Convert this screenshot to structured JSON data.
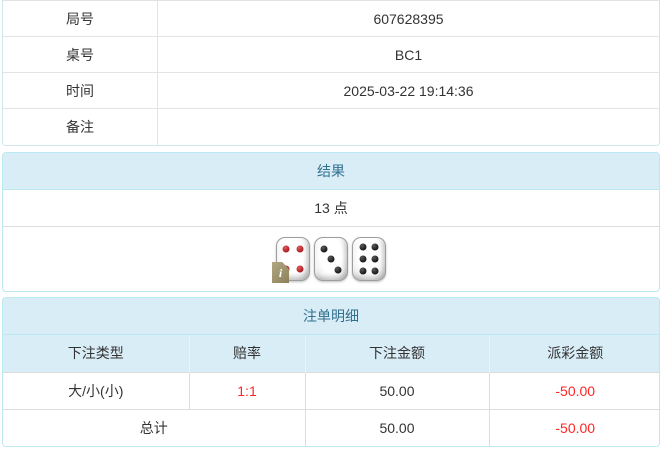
{
  "info_table": {
    "rows": [
      {
        "label": "局号",
        "value": "607628395"
      },
      {
        "label": "桌号",
        "value": "BC1"
      },
      {
        "label": "时间",
        "value": "2025-03-22 19:14:36"
      },
      {
        "label": "备注",
        "value": ""
      }
    ]
  },
  "result_panel": {
    "title": "结果",
    "points": "13 点",
    "dice": [
      {
        "value": 4,
        "color": "red",
        "badge": "i"
      },
      {
        "value": 3,
        "color": "black"
      },
      {
        "value": 6,
        "color": "black"
      }
    ]
  },
  "bet_panel": {
    "title": "注单明细",
    "columns": [
      "下注类型",
      "赔率",
      "下注金额",
      "派彩金额"
    ],
    "rows": [
      {
        "bet_type": "大/小(小)",
        "odds": "1:1",
        "bet_amount": "50.00",
        "payout": "-50.00"
      }
    ],
    "total": {
      "label": "总计",
      "bet_amount": "50.00",
      "payout": "-50.00"
    }
  },
  "colors": {
    "panel_border": "#bce8f1",
    "heading_bg": "#d9edf7",
    "heading_text": "#31708f",
    "table_border": "#dddddd",
    "body_text": "#333333",
    "negative_red": "#ff2626",
    "pip_red": "#a81c22",
    "pip_black": "#141414"
  }
}
